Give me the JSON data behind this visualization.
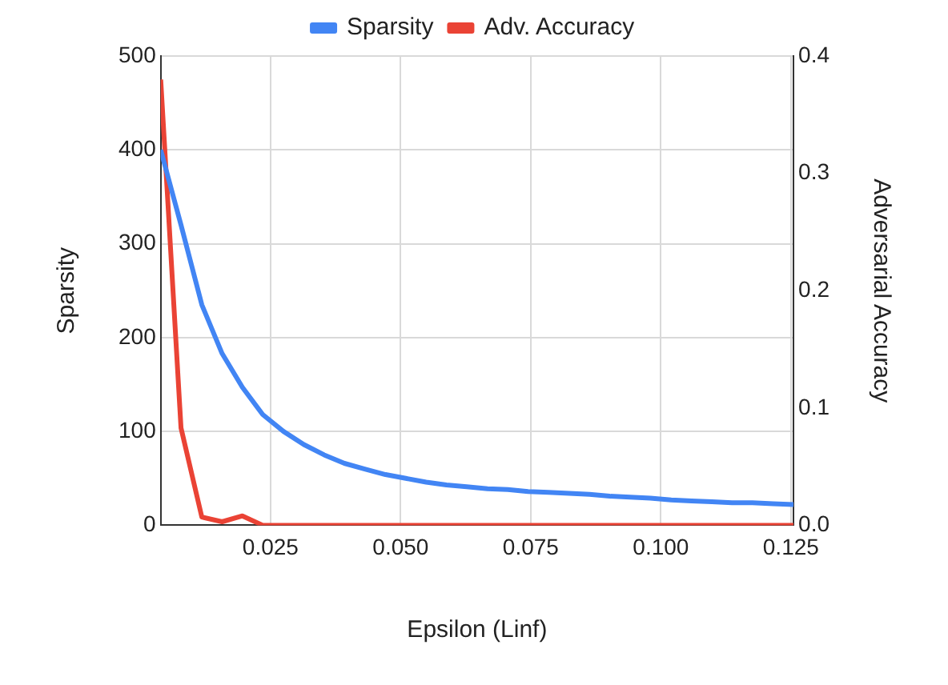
{
  "chart_data": {
    "type": "line",
    "xlabel": "Epsilon (Linf)",
    "ylabel": "Sparsity",
    "y2label": "Adversarial Accuracy",
    "x": [
      0.0039,
      0.0078,
      0.0118,
      0.0157,
      0.0196,
      0.0235,
      0.0275,
      0.0314,
      0.0353,
      0.0392,
      0.0431,
      0.0471,
      0.051,
      0.0549,
      0.0588,
      0.0627,
      0.0667,
      0.0706,
      0.0745,
      0.0784,
      0.0824,
      0.0863,
      0.0902,
      0.0941,
      0.098,
      0.102,
      0.1059,
      0.1098,
      0.1137,
      0.1176,
      0.1216,
      0.1255
    ],
    "series": [
      {
        "name": "Sparsity",
        "color": "#4285f4",
        "values": [
          400,
          320,
          235,
          183,
          147,
          118,
          100,
          86,
          75,
          66,
          60,
          54,
          50,
          46,
          43,
          41,
          39,
          38,
          36,
          35,
          34,
          33,
          31,
          30,
          29,
          27,
          26,
          25,
          24,
          24,
          23,
          22
        ]
      },
      {
        "name": "Adv. Accuracy",
        "color": "#ea4335",
        "axis": "y2",
        "values": [
          0.38,
          0.083,
          0.007,
          0.003,
          0.008,
          0,
          0,
          0,
          0,
          0,
          0,
          0,
          0,
          0,
          0,
          0,
          0,
          0,
          0,
          0,
          0,
          0,
          0,
          0,
          0,
          0,
          0,
          0,
          0,
          0,
          0,
          0
        ]
      }
    ],
    "xlim": [
      0.0039,
      0.1255
    ],
    "xticks": [
      {
        "value": 0.025,
        "label": "0.025"
      },
      {
        "value": 0.05,
        "label": "0.050"
      },
      {
        "value": 0.075,
        "label": "0.075"
      },
      {
        "value": 0.1,
        "label": "0.100"
      },
      {
        "value": 0.125,
        "label": "0.125"
      }
    ],
    "ylim": [
      0,
      500
    ],
    "yticks": [
      0,
      100,
      200,
      300,
      400,
      500
    ],
    "y2lim": [
      0,
      0.4
    ],
    "y2ticks": [
      {
        "value": 0,
        "label": "0.0"
      },
      {
        "value": 0.1,
        "label": "0.1"
      },
      {
        "value": 0.2,
        "label": "0.2"
      },
      {
        "value": 0.3,
        "label": "0.3"
      },
      {
        "value": 0.4,
        "label": "0.4"
      }
    ],
    "grid": true,
    "legend": "top",
    "marker": "none",
    "line_style": "solid"
  }
}
